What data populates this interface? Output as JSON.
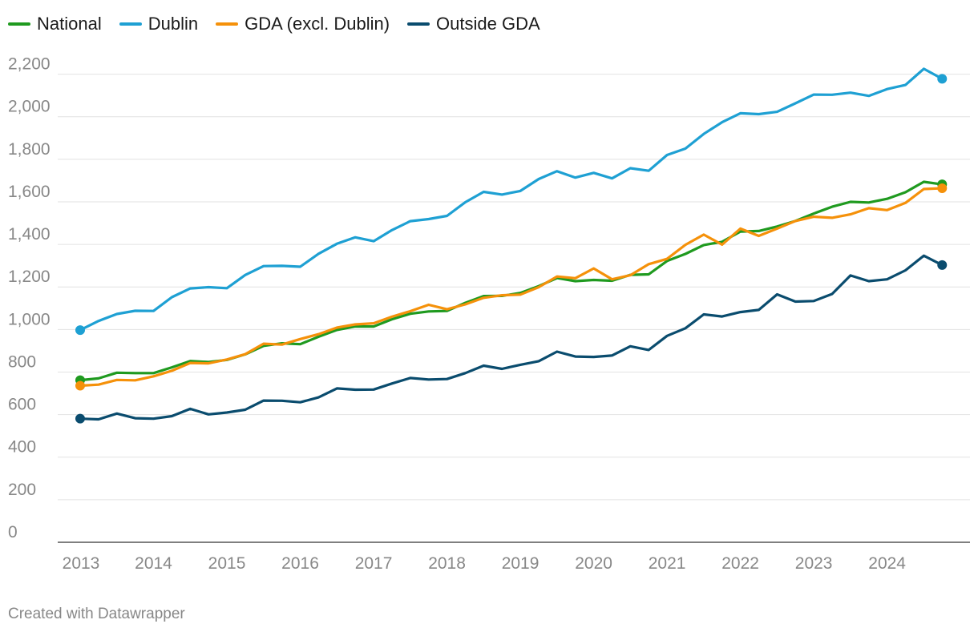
{
  "chart_data": {
    "type": "line",
    "title": "",
    "xlabel": "",
    "ylabel": "",
    "ylim": [
      0,
      2300
    ],
    "yticks": [
      0,
      200,
      400,
      600,
      800,
      1000,
      1200,
      1400,
      1600,
      1800,
      2000,
      2200
    ],
    "ytick_labels": [
      "0",
      "200",
      "400",
      "600",
      "800",
      "1,000",
      "1,200",
      "1,400",
      "1,600",
      "1,800",
      "2,000",
      "2,200"
    ],
    "xlim": [
      2013,
      2024.9
    ],
    "xticks": [
      2013,
      2014,
      2015,
      2016,
      2017,
      2018,
      2019,
      2020,
      2021,
      2022,
      2023,
      2024
    ],
    "xtick_labels": [
      "2013",
      "2014",
      "2015",
      "2016",
      "2017",
      "2018",
      "2019",
      "2020",
      "2021",
      "2022",
      "2023",
      "2024"
    ],
    "legend": "top-left",
    "x": [
      2013.0,
      2013.25,
      2013.5,
      2013.75,
      2014.0,
      2014.25,
      2014.5,
      2014.75,
      2015.0,
      2015.25,
      2015.5,
      2015.75,
      2016.0,
      2016.25,
      2016.5,
      2016.75,
      2017.0,
      2017.25,
      2017.5,
      2017.75,
      2018.0,
      2018.25,
      2018.5,
      2018.75,
      2019.0,
      2019.25,
      2019.5,
      2019.75,
      2020.0,
      2020.25,
      2020.5,
      2020.75,
      2021.0,
      2021.25,
      2021.5,
      2021.75,
      2022.0,
      2022.25,
      2022.5,
      2022.75,
      2023.0,
      2023.25,
      2023.5,
      2023.75,
      2024.0,
      2024.25,
      2024.5,
      2024.75
    ],
    "series": [
      {
        "name": "National",
        "color": "#1f9a1f",
        "values": [
          762,
          770,
          797,
          795,
          795,
          822,
          852,
          847,
          857,
          883,
          923,
          935,
          931,
          966,
          998,
          1014,
          1014,
          1048,
          1074,
          1085,
          1087,
          1125,
          1157,
          1158,
          1172,
          1204,
          1242,
          1227,
          1233,
          1229,
          1257,
          1259,
          1322,
          1355,
          1397,
          1412,
          1460,
          1463,
          1484,
          1510,
          1545,
          1577,
          1600,
          1597,
          1614,
          1645,
          1694,
          1682
        ]
      },
      {
        "name": "Dublin",
        "color": "#1ea0d3",
        "values": [
          997,
          1040,
          1073,
          1088,
          1087,
          1152,
          1193,
          1199,
          1194,
          1256,
          1298,
          1299,
          1295,
          1356,
          1403,
          1433,
          1415,
          1467,
          1509,
          1519,
          1534,
          1598,
          1647,
          1634,
          1651,
          1707,
          1744,
          1714,
          1736,
          1710,
          1758,
          1746,
          1820,
          1850,
          1919,
          1974,
          2016,
          2012,
          2023,
          2063,
          2104,
          2103,
          2113,
          2098,
          2130,
          2149,
          2225,
          2178
        ]
      },
      {
        "name": "GDA (excl. Dublin)",
        "color": "#f5910a",
        "values": [
          736,
          741,
          763,
          761,
          780,
          806,
          843,
          841,
          859,
          884,
          933,
          929,
          955,
          978,
          1009,
          1024,
          1029,
          1060,
          1086,
          1116,
          1095,
          1118,
          1149,
          1161,
          1164,
          1199,
          1249,
          1241,
          1287,
          1236,
          1255,
          1307,
          1332,
          1398,
          1446,
          1399,
          1474,
          1440,
          1474,
          1510,
          1530,
          1525,
          1541,
          1570,
          1561,
          1595,
          1660,
          1664
        ]
      },
      {
        "name": "Outside GDA",
        "color": "#0a4c6e",
        "values": [
          581,
          578,
          605,
          583,
          581,
          593,
          627,
          601,
          610,
          623,
          666,
          665,
          658,
          681,
          723,
          717,
          718,
          746,
          772,
          765,
          767,
          795,
          830,
          815,
          834,
          851,
          896,
          873,
          871,
          878,
          921,
          904,
          970,
          1006,
          1071,
          1061,
          1082,
          1092,
          1165,
          1131,
          1134,
          1167,
          1254,
          1227,
          1236,
          1278,
          1347,
          1303
        ]
      }
    ]
  },
  "footer": {
    "credit": "Created with Datawrapper"
  }
}
